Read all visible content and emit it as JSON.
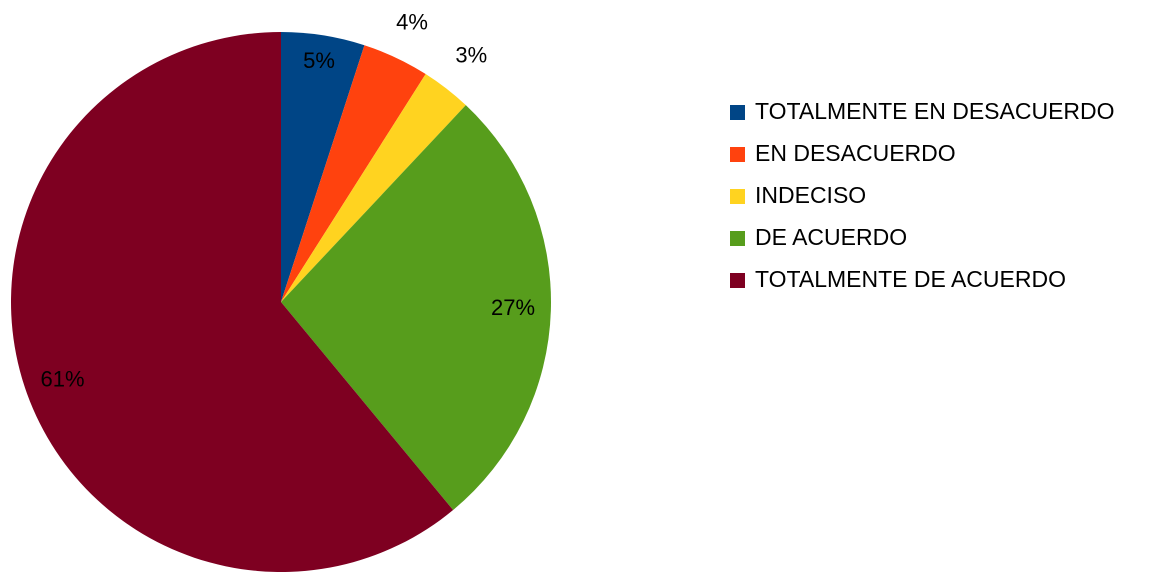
{
  "chart_data": {
    "type": "pie",
    "categories": [
      "TOTALMENTE EN DESACUERDO",
      "EN DESACUERDO",
      "INDECISO",
      "DE ACUERDO",
      "TOTALMENTE DE ACUERDO"
    ],
    "values": [
      5,
      4,
      3,
      27,
      61
    ],
    "value_labels": [
      "5%",
      "4%",
      "3%",
      "27%",
      "61%"
    ],
    "colors": [
      "#004586",
      "#ff420e",
      "#ffd320",
      "#579d1c",
      "#7e0021"
    ],
    "legend": "right"
  }
}
